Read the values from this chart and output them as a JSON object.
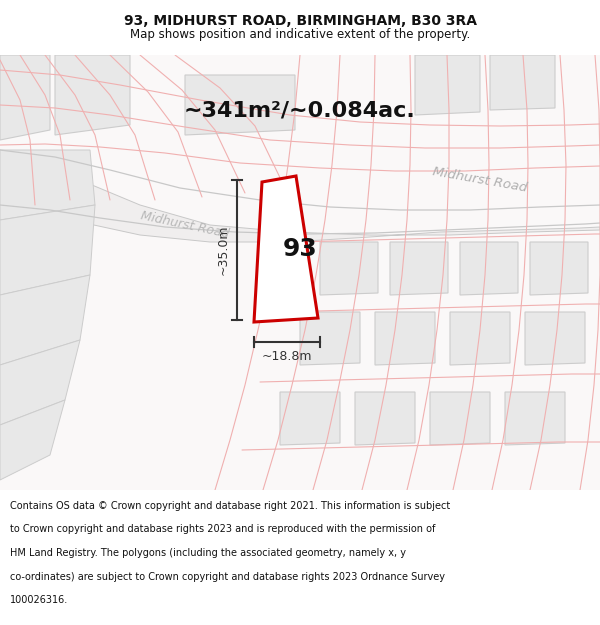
{
  "title_line1": "93, MIDHURST ROAD, BIRMINGHAM, B30 3RA",
  "title_line2": "Map shows position and indicative extent of the property.",
  "area_text": "~341m²/~0.084ac.",
  "label_93": "93",
  "dim_height": "~35.0m",
  "dim_width": "~18.8m",
  "road_label_upper": "Midhurst Road",
  "road_label_lower": "Midhurst Road",
  "footer_lines": [
    "Contains OS data © Crown copyright and database right 2021. This information is subject",
    "to Crown copyright and database rights 2023 and is reproduced with the permission of",
    "HM Land Registry. The polygons (including the associated geometry, namely x, y",
    "co-ordinates) are subject to Crown copyright and database rights 2023 Ordnance Survey",
    "100026316."
  ],
  "map_bg": "#faf8f8",
  "plot_edge_color": "#cc0000",
  "road_line_color": "#f0b0b0",
  "road_gray_line": "#c8c8c8",
  "building_fill": "#e8e8e8",
  "building_edge": "#cccccc",
  "road_fill": "#f5f5f5",
  "dim_color": "#333333",
  "white": "#ffffff",
  "text_dark": "#111111",
  "text_gray": "#aaaaaa"
}
